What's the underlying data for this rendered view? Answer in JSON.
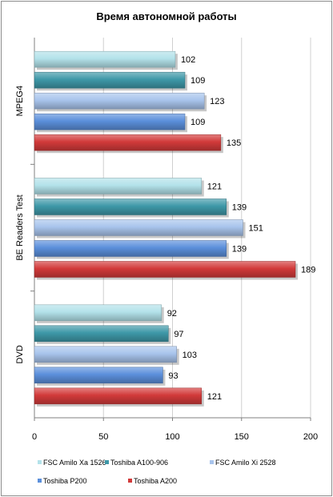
{
  "chart_data": {
    "type": "bar",
    "orientation": "horizontal",
    "title": "Время автономной работы",
    "xlabel": "",
    "ylabel": "",
    "xlim": [
      0,
      200
    ],
    "x_ticks": [
      "0",
      "50",
      "100",
      "150",
      "200"
    ],
    "grid": true,
    "legend_position": "bottom",
    "categories": [
      "MPEG4",
      "BE Readers Test",
      "DVD"
    ],
    "series": [
      {
        "name": "FSC Amilo Xa 1526",
        "color": "#b3e2ea",
        "values": [
          102,
          121,
          92
        ]
      },
      {
        "name": "Toshiba A100-906",
        "color": "#3e98a8",
        "values": [
          109,
          139,
          97
        ]
      },
      {
        "name": "FSC Amilo Xi 2528",
        "color": "#a8c4ec",
        "values": [
          123,
          151,
          103
        ]
      },
      {
        "name": "Toshiba P200",
        "color": "#5b8fdb",
        "values": [
          109,
          139,
          93
        ]
      },
      {
        "name": "Toshiba A200",
        "color": "#d23a3a",
        "values": [
          135,
          189,
          121
        ]
      }
    ]
  }
}
